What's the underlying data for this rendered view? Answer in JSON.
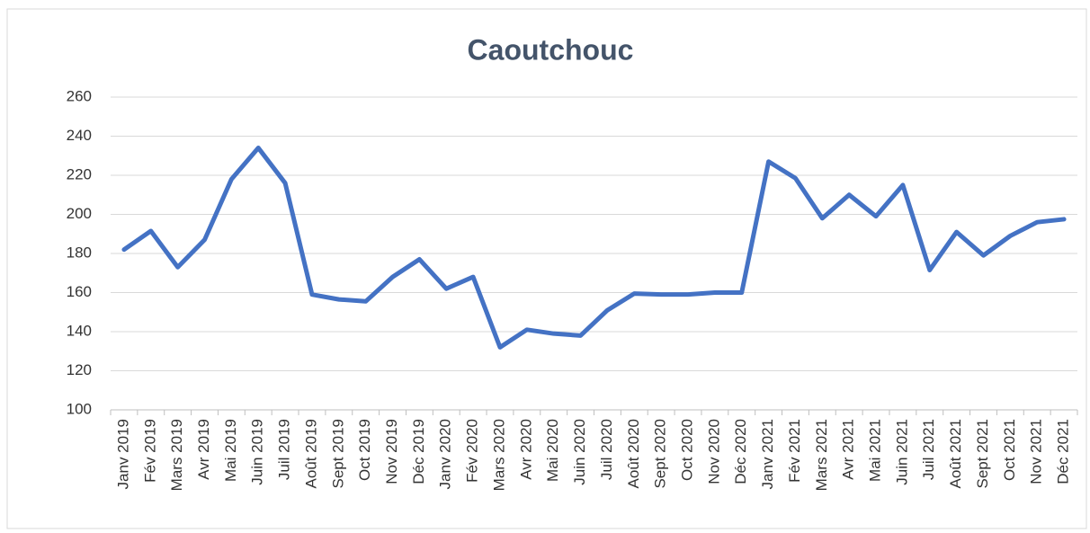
{
  "chart_data": {
    "type": "line",
    "title": "Caoutchouc",
    "categories": [
      "Janv 2019",
      "Fév 2019",
      "Mars 2019",
      "Avr 2019",
      "Mai 2019",
      "Juin 2019",
      "Juil 2019",
      "Août 2019",
      "Sept 2019",
      "Oct 2019",
      "Nov 2019",
      "Déc 2019",
      "Janv 2020",
      "Fév 2020",
      "Mars 2020",
      "Avr 2020",
      "Mai 2020",
      "Juin 2020",
      "Juil 2020",
      "Août 2020",
      "Sept 2020",
      "Oct 2020",
      "Nov 2020",
      "Déc 2020",
      "Janv 2021",
      "Fév 2021",
      "Mars 2021",
      "Avr 2021",
      "Mai 2021",
      "Juin 2021",
      "Juil 2021",
      "Août 2021",
      "Sept 2021",
      "Oct 2021",
      "Nov 2021",
      "Déc 2021"
    ],
    "values": [
      182,
      191.5,
      173,
      187,
      218,
      234,
      216,
      159,
      156.5,
      155.5,
      168,
      177,
      162,
      168,
      132,
      141,
      139,
      138,
      151,
      159.5,
      159,
      159,
      160,
      160,
      227,
      218.5,
      198,
      210,
      199,
      215,
      171.5,
      191,
      179,
      189,
      196,
      197.5
    ],
    "color": "#4472c4",
    "ylim": [
      100,
      260
    ],
    "yticks": [
      100,
      120,
      140,
      160,
      180,
      200,
      220,
      240,
      260
    ],
    "grid": true
  }
}
